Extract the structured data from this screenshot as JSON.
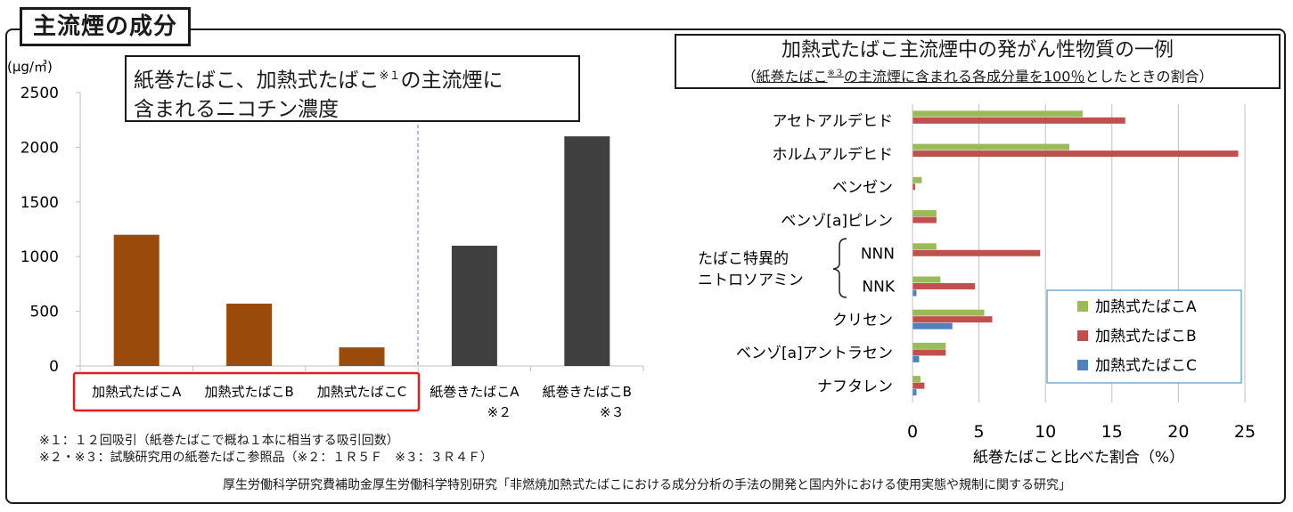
{
  "section_title": "主流煙の成分",
  "left_title": {
    "main": "紙巻たばこ、加熱式たばこ",
    "sup": "※１",
    "rest": "の主流煙に",
    "line2": "含まれるニコチン濃度"
  },
  "right_title": {
    "line1": "加熱式たばこ主流煙中の発がん性物質の一例",
    "open": "（",
    "underlined_a": "紙巻たばこ",
    "sup": "※３",
    "underlined_b": "の主流煙に含まれる各成分量を100％",
    "rest": "としたときの割合）"
  },
  "notes": [
    "※１：１２回吸引（紙巻たばこで概ね１本に相当する吸引回数）",
    "※２・※３：試験研究用の紙巻たばこ参照品（※２：１Ｒ５Ｆ　※３：３Ｒ４Ｆ）"
  ],
  "source": "厚生労働科学研究費補助金厚生労働科学特別研究「非燃焼加熱式たばこにおける成分分析の手法の開発と国内外における使用実態や規制に関する研究」",
  "chart_data": [
    {
      "type": "bar",
      "ylabel": "(μg/㎥)",
      "ylim": [
        0,
        2500
      ],
      "yticks": [
        "0",
        "500",
        "1000",
        "1500",
        "2000",
        "2500"
      ],
      "categories": [
        "加熱式たばこA",
        "加熱式たばこB",
        "加熱式たばこC",
        "紙巻きたばこA",
        "紙巻きたばこB"
      ],
      "category_notes": [
        "",
        "",
        "",
        "※２",
        "※３"
      ],
      "values": [
        1200,
        570,
        170,
        1100,
        2100
      ],
      "colors": [
        "#9a4a0b",
        "#9a4a0b",
        "#9a4a0b",
        "#404040",
        "#404040"
      ],
      "grid": false
    },
    {
      "type": "bar",
      "orientation": "horizontal",
      "xlabel": "紙巻たばこと比べた割合（%）",
      "xlim": [
        0,
        25
      ],
      "xticks": [
        "0",
        "5",
        "10",
        "15",
        "20",
        "25"
      ],
      "categories": [
        "アセトアルデヒド",
        "ホルムアルデヒド",
        "ベンゼン",
        "ベンゾ[a]ピレン",
        "NNN",
        "NNK",
        "クリセン",
        "ベンゾ[a]アントラセン",
        "ナフタレン"
      ],
      "group_label": [
        "たばこ特異的",
        "ニトロソアミン"
      ],
      "series": [
        {
          "name": "加熱式たばこA",
          "color": "#9bbb59",
          "values": [
            12.8,
            11.8,
            0.7,
            1.8,
            1.8,
            2.1,
            5.4,
            2.5,
            0.6
          ]
        },
        {
          "name": "加熱式たばこB",
          "color": "#c0504d",
          "values": [
            16.0,
            24.5,
            0.2,
            1.8,
            9.6,
            4.7,
            6.0,
            2.5,
            0.9
          ]
        },
        {
          "name": "加熱式たばこC",
          "color": "#4f81bd",
          "values": [
            0,
            0,
            0,
            0,
            0,
            0.3,
            3.0,
            0.5,
            0.3
          ]
        }
      ],
      "legend_position": "bottom-right",
      "grid": true
    }
  ]
}
